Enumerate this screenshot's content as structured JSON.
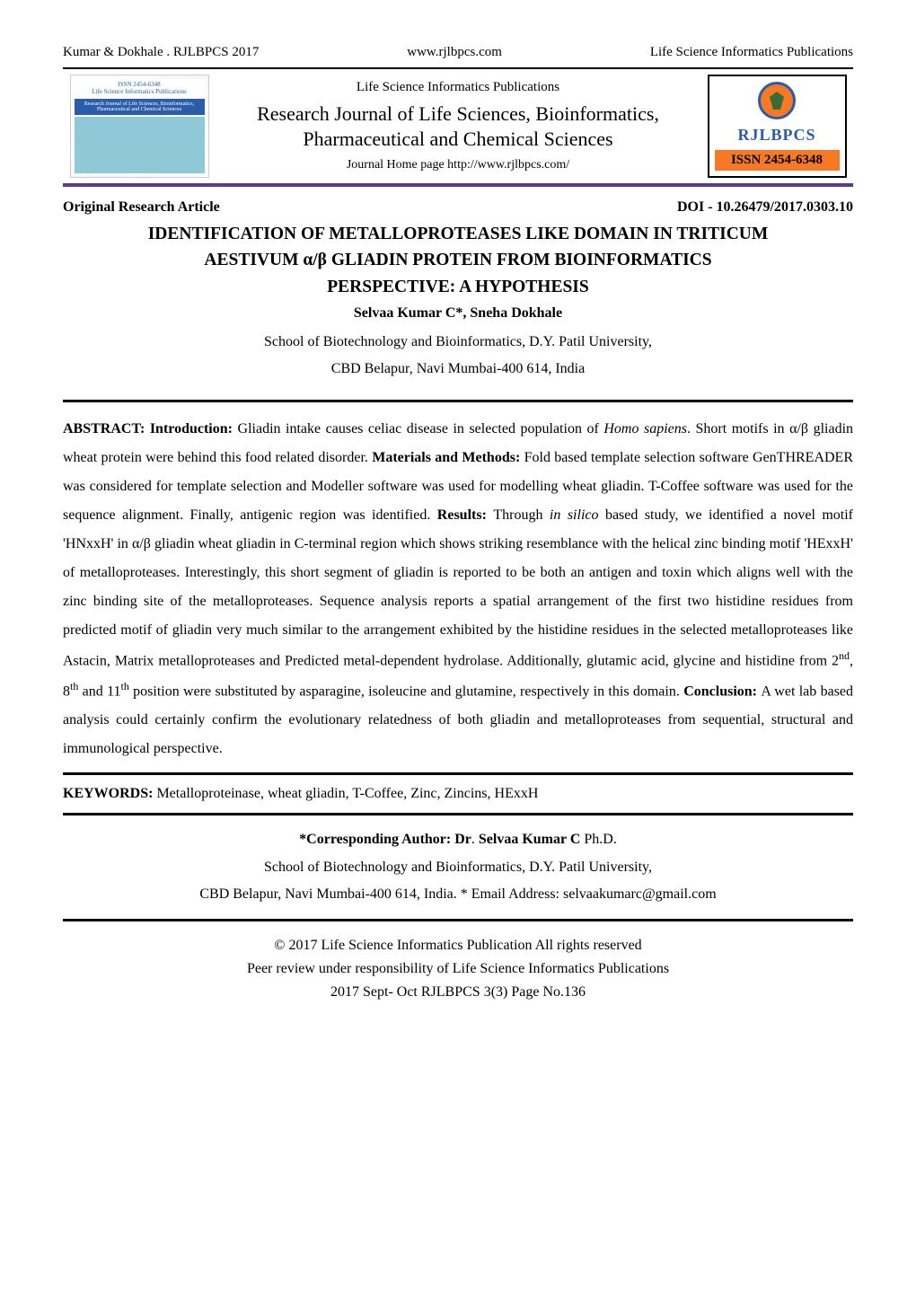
{
  "header": {
    "left": "Kumar & Dokhale   . RJLBPCS 2017",
    "center": "www.rjlbpcs.com",
    "right": "Life Science Informatics Publications"
  },
  "banner": {
    "logo_top_issn": "ISSN 2454-6348",
    "logo_top_text": "Life Science Informatics Publications",
    "logo_mid_text": "Research Journal of Life Sciences, Bioinformatics, Pharmaceutical and Chemical Sciences",
    "center_line1": "Life Science Informatics Publications",
    "center_line2": "Research Journal of Life Sciences, Bioinformatics,",
    "center_line3": "Pharmaceutical and Chemical Sciences",
    "center_line4": "Journal Home page http://www.rjlbpcs.com/",
    "right_label": "RJLBPCS",
    "right_issn": "ISSN 2454-6348"
  },
  "meta": {
    "article_type": "Original Research Article",
    "doi": "DOI - 10.26479/2017.0303.10"
  },
  "title": {
    "line1": "IDENTIFICATION OF METALLOPROTEASES LIKE DOMAIN IN TRITICUM",
    "line2": "AESTIVUM α/β GLIADIN PROTEIN FROM BIOINFORMATICS",
    "line3": "PERSPECTIVE: A HYPOTHESIS",
    "authors": "Selvaa Kumar C*, Sneha Dokhale",
    "affiliation1": "School of Biotechnology and Bioinformatics, D.Y. Patil University,",
    "affiliation2": "CBD Belapur, Navi Mumbai-400 614, India"
  },
  "abstract": {
    "label_abstract": "ABSTRACT: ",
    "label_intro": "Introduction: ",
    "text_intro_a": "Gliadin intake causes celiac disease in selected population of ",
    "text_intro_italic": "Homo sapiens",
    "text_intro_b": ". Short motifs in α/β gliadin wheat protein were behind this food related disorder. ",
    "label_methods": "Materials and Methods: ",
    "text_methods": "Fold based template selection software GenTHREADER was considered for template selection and Modeller software was used for modelling wheat gliadin. T-Coffee software was used for the sequence alignment. Finally, antigenic region was identified. ",
    "label_results": "Results: ",
    "text_results_a": "Through ",
    "text_results_italic": "in silico",
    "text_results_b": " based study, we identified a novel motif 'HNxxH' in α/β gliadin wheat gliadin in C-terminal region which shows striking resemblance with the helical zinc binding motif 'HExxH' of metalloproteases. Interestingly, this short segment of gliadin is reported to be both an antigen and toxin which aligns well with the zinc binding site of the metalloproteases. Sequence analysis reports a spatial arrangement of the first two histidine residues from predicted motif of gliadin very much similar to the arrangement exhibited by the histidine residues in the selected metalloproteases like Astacin, Matrix metalloproteases and Predicted metal-dependent hydrolase. Additionally, glutamic acid, glycine and histidine from 2",
    "sup_nd": "nd",
    "text_results_c": ", 8",
    "sup_th1": "th",
    "text_results_d": " and 11",
    "sup_th2": "th",
    "text_results_e": " position were substituted by asparagine, isoleucine and glutamine, respectively in this domain. ",
    "label_conclusion": "Conclusion: ",
    "text_conclusion": "A wet lab based analysis could certainly confirm the evolutionary relatedness of both gliadin and metalloproteases from sequential, structural and immunological perspective."
  },
  "keywords": {
    "label": "KEYWORDS: ",
    "text": "Metalloproteinase, wheat gliadin, T-Coffee, Zinc, Zincins, HExxH"
  },
  "corresponding": {
    "label": "*Corresponding Author: Dr",
    "dot": ". ",
    "name": "Selvaa Kumar C ",
    "degree": "Ph.D.",
    "line2": "School of Biotechnology and Bioinformatics, D.Y. Patil University,",
    "line3": "CBD Belapur, Navi Mumbai-400 614, India. * Email Address: selvaakumarc@gmail.com"
  },
  "footer": {
    "line1": "© 2017 Life Science Informatics Publication All rights reserved",
    "line2": "Peer review under responsibility of Life Science Informatics Publications",
    "line3": "2017 Sept- Oct RJLBPCS 3(3) Page No.136"
  },
  "colors": {
    "purple_rule": "#5b3a8f",
    "orange": "#f77825",
    "blue": "#2a5caa",
    "teal": "#8fc9d8",
    "green": "#3a6b35"
  }
}
